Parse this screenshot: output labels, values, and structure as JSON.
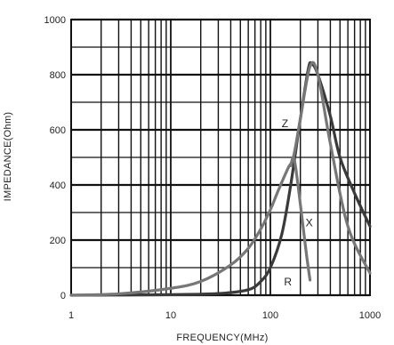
{
  "chart_data": {
    "type": "line",
    "title": "",
    "xlabel": "FREQUENCY(MHz)",
    "ylabel": "IMPEDANCE(Ohm)",
    "x_scale": "log",
    "xlim": [
      1,
      1000
    ],
    "ylim": [
      0,
      1000
    ],
    "x_ticks": [
      1,
      10,
      100,
      1000
    ],
    "x_tick_labels": [
      "1",
      "10",
      "100",
      "1000"
    ],
    "y_ticks": [
      0,
      200,
      400,
      600,
      800,
      1000
    ],
    "y_tick_labels": [
      "0",
      "200",
      "400",
      "600",
      "800",
      "1000"
    ],
    "grid": true,
    "legend": "none",
    "series": [
      {
        "name": "Z",
        "color": "#3a3a3a",
        "x": [
          1,
          10,
          30,
          60,
          80,
          100,
          130,
          160,
          200,
          240,
          260,
          300,
          400,
          500,
          700,
          1000
        ],
        "y": [
          0,
          2,
          6,
          20,
          50,
          100,
          220,
          400,
          640,
          820,
          840,
          800,
          650,
          500,
          370,
          250
        ]
      },
      {
        "name": "R",
        "color": "#777777",
        "x": [
          1,
          3,
          10,
          20,
          40,
          60,
          80,
          100,
          120,
          150,
          170,
          200,
          250,
          300,
          400,
          600,
          1000
        ],
        "y": [
          0,
          5,
          25,
          50,
          110,
          170,
          240,
          310,
          380,
          460,
          500,
          640,
          830,
          800,
          550,
          250,
          80
        ]
      },
      {
        "name": "X",
        "color": "#777777",
        "x": [
          160,
          170,
          180,
          200,
          230,
          250
        ],
        "y": [
          470,
          500,
          460,
          330,
          150,
          55
        ]
      }
    ],
    "series_labels": [
      {
        "text": "Z",
        "x": 140,
        "y": 610
      },
      {
        "text": "X",
        "x": 245,
        "y": 250
      },
      {
        "text": "R",
        "x": 150,
        "y": 35
      }
    ]
  }
}
